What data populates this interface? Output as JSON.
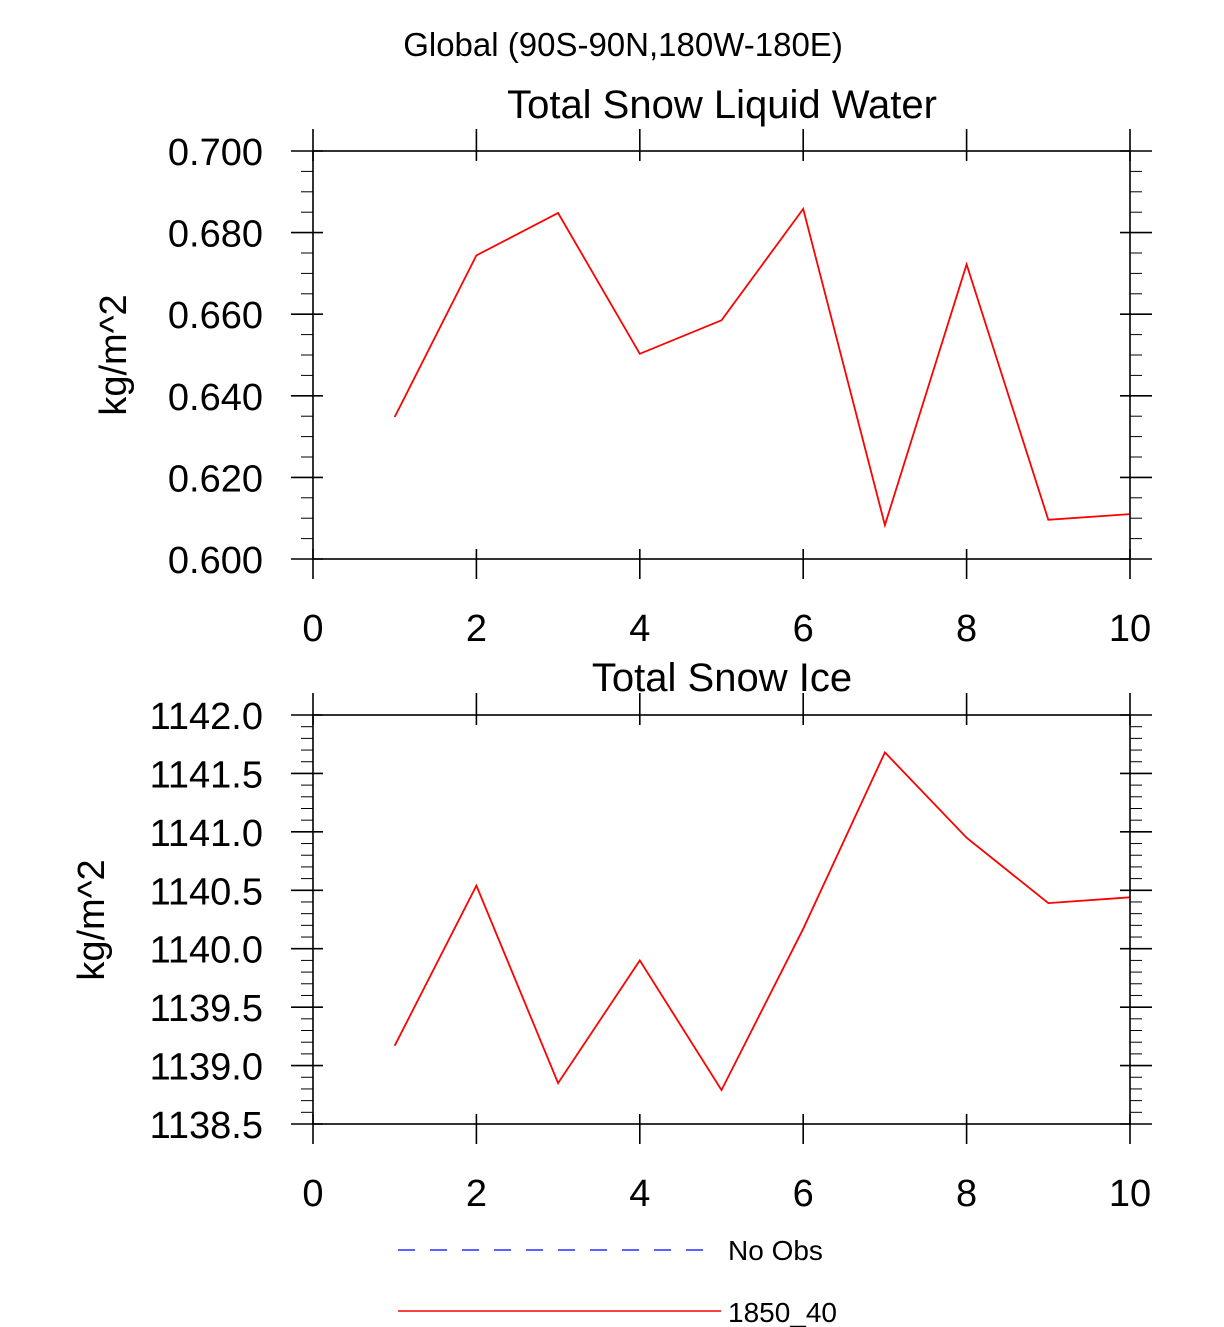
{
  "page_title": "Global (90S-90N,180W-180E)",
  "legend": [
    {
      "label": "No Obs",
      "color": "#0000ff",
      "style": "dashed"
    },
    {
      "label": "1850_40",
      "color": "#ff0000",
      "style": "solid"
    }
  ],
  "chart_data": [
    {
      "type": "line",
      "title": "Total Snow Liquid Water",
      "xlabel": "",
      "ylabel": "kg/m^2",
      "xlim": [
        0,
        10
      ],
      "ylim": [
        0.6,
        0.7
      ],
      "x_ticks": [
        "0",
        "2",
        "4",
        "6",
        "8",
        "10"
      ],
      "y_ticks": [
        "0.600",
        "0.620",
        "0.640",
        "0.660",
        "0.680",
        "0.700"
      ],
      "series": [
        {
          "name": "1850_40",
          "color": "#ff0000",
          "x": [
            1,
            2,
            3,
            4,
            5,
            6,
            7,
            8,
            9,
            10
          ],
          "values": [
            0.6348,
            0.6744,
            0.6848,
            0.6503,
            0.6585,
            0.6858,
            0.6083,
            0.6722,
            0.6096,
            0.611
          ]
        }
      ]
    },
    {
      "type": "line",
      "title": "Total Snow Ice",
      "xlabel": "",
      "ylabel": "kg/m^2",
      "xlim": [
        0,
        10
      ],
      "ylim": [
        1138.5,
        1142.0
      ],
      "x_ticks": [
        "0",
        "2",
        "4",
        "6",
        "8",
        "10"
      ],
      "y_ticks": [
        "1138.5",
        "1139.0",
        "1139.5",
        "1140.0",
        "1140.5",
        "1141.0",
        "1141.5",
        "1142.0"
      ],
      "series": [
        {
          "name": "1850_40",
          "color": "#ff0000",
          "x": [
            1,
            2,
            3,
            4,
            5,
            6,
            7,
            8,
            9,
            10
          ],
          "values": [
            1139.17,
            1140.54,
            1138.85,
            1139.9,
            1138.79,
            1140.17,
            1141.68,
            1140.95,
            1140.39,
            1140.44
          ]
        }
      ]
    }
  ]
}
